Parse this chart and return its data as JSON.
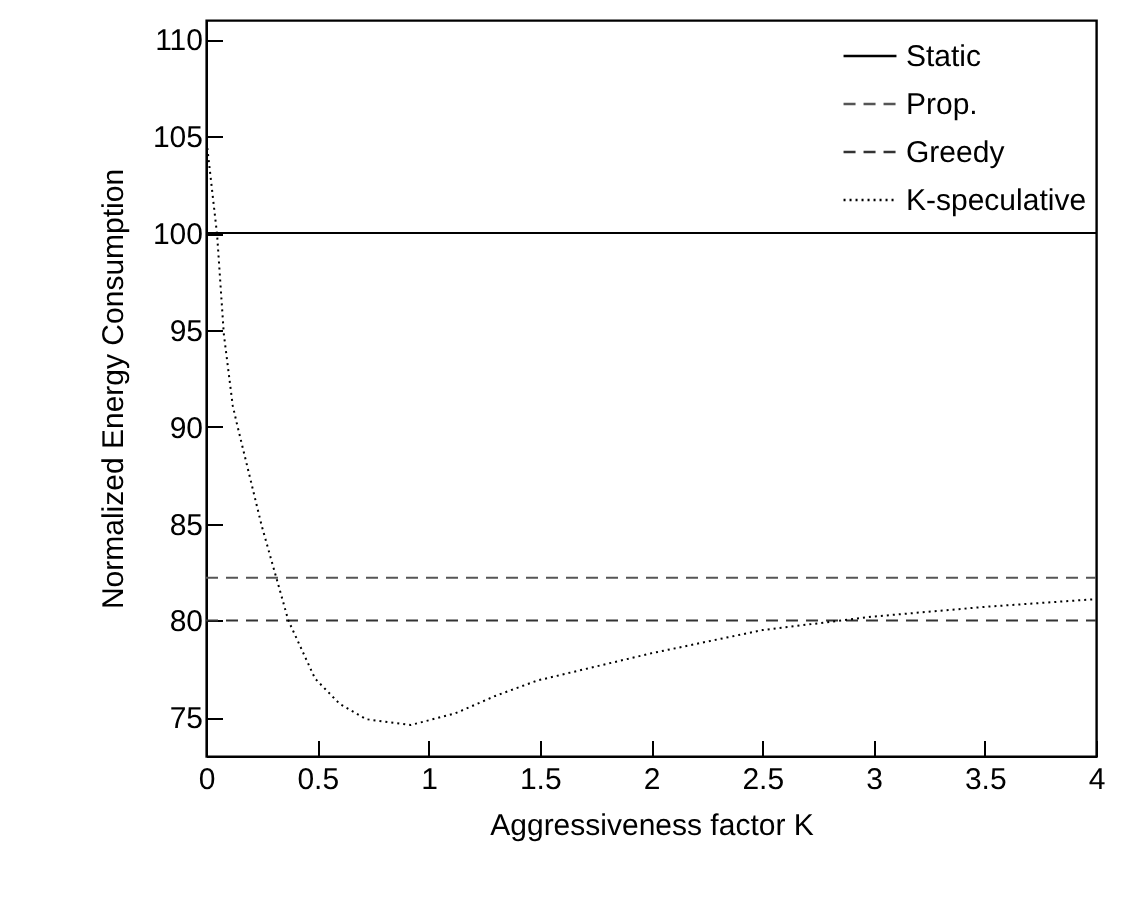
{
  "chart_data": {
    "type": "line",
    "xlabel": "Aggressiveness factor K",
    "ylabel": "Normalized Energy Consumption",
    "xlim": [
      0,
      4
    ],
    "xticks": [
      0,
      0.5,
      1,
      1.5,
      2,
      2.5,
      3,
      3.5,
      4
    ],
    "ylim": [
      73,
      111
    ],
    "yticks": [
      75,
      80,
      85,
      90,
      95,
      100,
      105,
      110
    ],
    "legend": "top right",
    "grid": false,
    "marker": "none",
    "series": [
      {
        "name": "Static",
        "color": "#000000",
        "line_style": "solid",
        "x": [
          0,
          4
        ],
        "values": [
          100,
          100
        ]
      },
      {
        "name": "Prop.",
        "color": "#555555",
        "line_style": "dashed",
        "x": [
          0,
          4
        ],
        "values": [
          82.2,
          82.2
        ]
      },
      {
        "name": "Greedy",
        "color": "#333333",
        "line_style": "dashed",
        "x": [
          0,
          4
        ],
        "values": [
          80,
          80
        ]
      },
      {
        "name": "K-speculative",
        "color": "#000000",
        "line_style": "dotted",
        "x": [
          0,
          0.05,
          0.08,
          0.12,
          0.14,
          0.25,
          0.37,
          0.49,
          0.6,
          0.72,
          0.92,
          1.12,
          1.3,
          1.49,
          2.0,
          2.5,
          3.0,
          3.5,
          4.0
        ],
        "values": [
          105,
          99.9,
          94.8,
          91.1,
          90.1,
          84.9,
          80,
          77,
          75.7,
          74.9,
          74.6,
          75.2,
          76.1,
          76.9,
          78.3,
          79.5,
          80.2,
          80.7,
          81.1
        ]
      }
    ]
  }
}
